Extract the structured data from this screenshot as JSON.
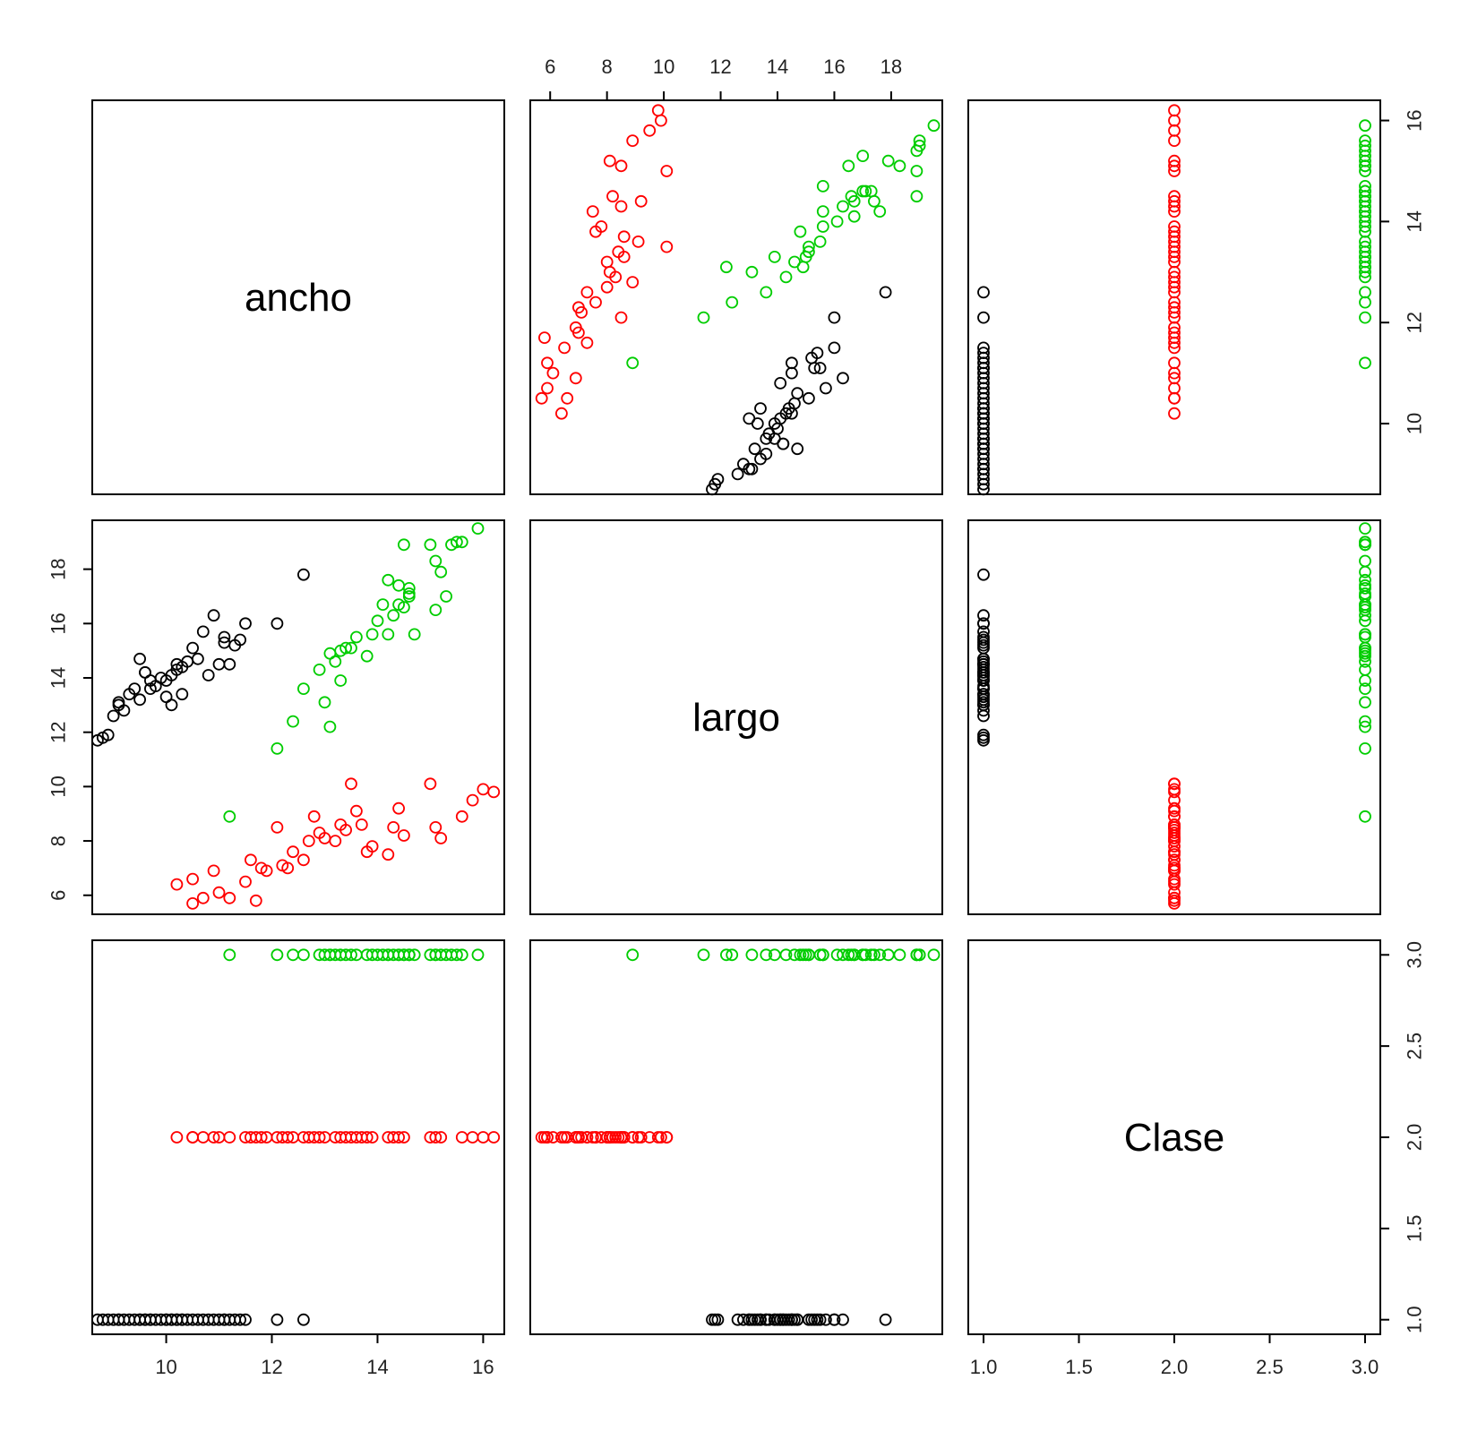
{
  "chart_data": {
    "type": "scatter",
    "variables": [
      "ancho",
      "largo",
      "Clase"
    ],
    "axes": {
      "ancho": {
        "range": [
          8.6,
          16.4
        ],
        "ticks": [
          10,
          12,
          14,
          16
        ]
      },
      "largo": {
        "range": [
          5.3,
          19.8
        ],
        "ticks": [
          6,
          8,
          10,
          12,
          14,
          16,
          18
        ]
      },
      "Clase": {
        "range": [
          0.92,
          3.08
        ],
        "ticks": [
          1.0,
          1.5,
          2.0,
          2.5,
          3.0
        ]
      }
    },
    "class_colors": {
      "1": "#000000",
      "2": "#ff0000",
      "3": "#00cd00"
    },
    "grid": false,
    "legend": "none",
    "series": [
      {
        "class": 1,
        "color": "#000000",
        "ancho": [
          8.8,
          8.9,
          9.0,
          9.1,
          9.2,
          9.3,
          9.4,
          9.5,
          9.5,
          9.6,
          9.7,
          9.7,
          9.8,
          9.9,
          10.0,
          10.0,
          10.1,
          10.1,
          10.2,
          10.2,
          10.3,
          10.4,
          10.5,
          10.6,
          10.7,
          10.8,
          10.9,
          11.0,
          11.1,
          11.2,
          11.3,
          11.4,
          11.5,
          12.1,
          12.6,
          8.7,
          9.1,
          9.6,
          10.3,
          11.1
        ],
        "largo": [
          11.8,
          11.9,
          12.6,
          13.1,
          12.8,
          13.4,
          13.6,
          13.2,
          14.7,
          14.2,
          13.6,
          13.9,
          13.7,
          14.0,
          13.3,
          13.9,
          14.1,
          13.0,
          14.5,
          14.3,
          13.4,
          14.6,
          15.1,
          14.7,
          15.7,
          14.1,
          16.3,
          14.5,
          15.5,
          14.5,
          15.2,
          15.4,
          16.0,
          16.0,
          17.8,
          11.7,
          13.0,
          14.2,
          14.4,
          15.3
        ]
      },
      {
        "class": 2,
        "color": "#ff0000",
        "ancho": [
          10.2,
          10.5,
          10.5,
          10.7,
          10.9,
          11.0,
          11.2,
          11.5,
          11.6,
          11.7,
          11.8,
          11.9,
          12.1,
          12.2,
          12.3,
          12.4,
          12.6,
          12.7,
          12.8,
          12.9,
          13.0,
          13.2,
          13.3,
          13.4,
          13.5,
          13.6,
          13.7,
          13.8,
          14.2,
          14.3,
          14.4,
          14.5,
          15.0,
          15.1,
          15.2,
          15.6,
          15.8,
          16.0,
          16.2,
          13.9
        ],
        "largo": [
          6.4,
          6.6,
          5.7,
          5.9,
          6.9,
          6.1,
          5.9,
          6.5,
          7.3,
          5.8,
          7.0,
          6.9,
          8.5,
          7.1,
          7.0,
          7.6,
          7.3,
          8.0,
          8.9,
          8.3,
          8.1,
          8.0,
          8.6,
          8.4,
          10.1,
          9.1,
          8.6,
          7.6,
          7.5,
          8.5,
          9.2,
          8.2,
          10.1,
          8.5,
          8.1,
          8.9,
          9.5,
          9.9,
          9.8,
          7.8
        ]
      },
      {
        "class": 3,
        "color": "#00cd00",
        "ancho": [
          11.2,
          12.1,
          12.4,
          12.6,
          12.9,
          13.0,
          13.1,
          13.1,
          13.2,
          13.3,
          13.3,
          13.4,
          13.6,
          13.8,
          13.9,
          14.0,
          14.1,
          14.2,
          14.2,
          14.3,
          14.4,
          14.5,
          14.5,
          14.6,
          14.6,
          14.7,
          15.0,
          15.1,
          15.1,
          15.3,
          15.4,
          15.5,
          15.6,
          15.9,
          13.5,
          14.4,
          15.2,
          14.6
        ],
        "largo": [
          8.9,
          11.4,
          12.4,
          13.6,
          14.3,
          13.1,
          14.9,
          12.2,
          14.6,
          13.9,
          15.0,
          15.1,
          15.5,
          14.8,
          15.6,
          16.1,
          16.7,
          17.6,
          15.6,
          16.3,
          17.4,
          18.9,
          16.6,
          17.1,
          17.3,
          15.6,
          18.9,
          16.5,
          18.3,
          17.0,
          18.9,
          19.0,
          19.0,
          19.5,
          15.1,
          16.7,
          17.9,
          17.0
        ]
      }
    ]
  }
}
